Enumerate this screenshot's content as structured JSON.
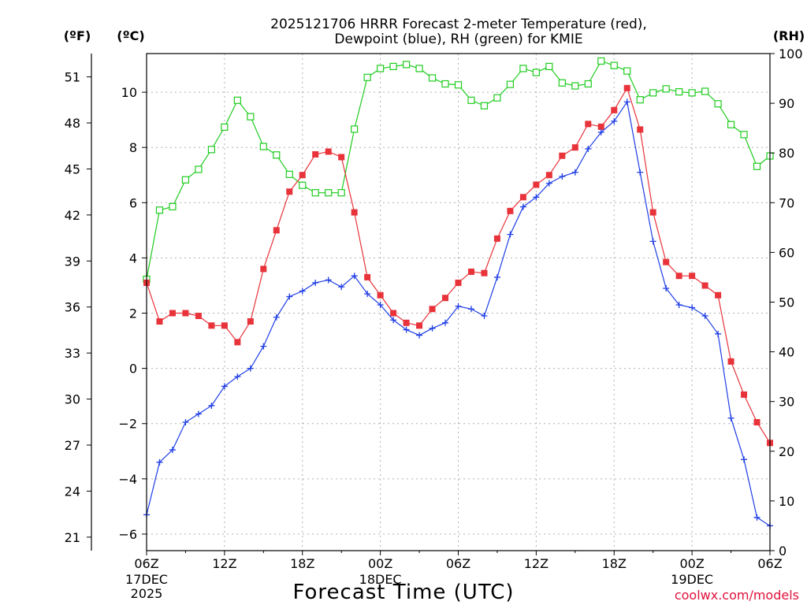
{
  "title_line1": "2025121706 HRRR Forecast 2-meter Temperature (red),",
  "title_line2": "Dewpoint (blue), RH (green) for KMIE",
  "xlabel": "Forecast Time (UTC)",
  "credit": "coolwx.com/models",
  "units": {
    "f": "(ºF)",
    "c": "(ºC)",
    "rh": "(RH)"
  },
  "colors": {
    "temperature": "#e8333a",
    "dewpoint": "#1e3de6",
    "rh": "#1fcc1f"
  },
  "chart_data": {
    "type": "line",
    "title": "2025121706 HRRR Forecast 2-meter Temperature (red), Dewpoint (blue), RH (green) for KMIE",
    "xlabel": "Forecast Time (UTC)",
    "x_start": "2025-12-17 06Z",
    "x_end": "2025-12-19 06Z",
    "xtick_labels": [
      "06Z",
      "12Z",
      "18Z",
      "00Z",
      "06Z",
      "12Z",
      "18Z",
      "00Z",
      "06Z"
    ],
    "date_labels": [
      "17DEC",
      "2025",
      "18DEC",
      "19DEC"
    ],
    "y_left_f_ticks": [
      21,
      24,
      27,
      30,
      33,
      36,
      39,
      42,
      45,
      48,
      51
    ],
    "y_left_c_ticks": [
      -6,
      -4,
      -2,
      0,
      2,
      4,
      6,
      8,
      10
    ],
    "y_right_rh_ticks": [
      0,
      10,
      20,
      30,
      40,
      50,
      60,
      70,
      80,
      90,
      100
    ],
    "ylim_c": [
      -6.6,
      11.4
    ],
    "ylim_rh": [
      0,
      100
    ],
    "grid": true,
    "series": [
      {
        "name": "Temperature",
        "units": "C",
        "values": [
          3.1,
          1.7,
          2.0,
          2.0,
          1.9,
          1.55,
          1.55,
          0.95,
          1.7,
          3.6,
          5.0,
          6.4,
          7.0,
          7.75,
          7.85,
          7.65,
          5.65,
          3.3,
          2.65,
          2.0,
          1.65,
          1.55,
          2.15,
          2.55,
          3.1,
          3.5,
          3.45,
          4.7,
          5.7,
          6.2,
          6.65,
          7.0,
          7.7,
          8.0,
          8.85,
          8.75,
          9.35,
          10.15,
          8.65,
          5.65,
          3.85,
          3.35,
          3.35,
          3.0,
          2.65,
          0.25,
          -0.95,
          -1.95,
          -2.7
        ]
      },
      {
        "name": "Dewpoint",
        "units": "C",
        "values": [
          -5.3,
          -3.4,
          -2.95,
          -1.95,
          -1.65,
          -1.35,
          -0.65,
          -0.3,
          0.0,
          0.8,
          1.85,
          2.6,
          2.8,
          3.1,
          3.2,
          2.95,
          3.35,
          2.7,
          2.3,
          1.75,
          1.4,
          1.2,
          1.45,
          1.65,
          2.25,
          2.15,
          1.9,
          3.3,
          4.85,
          5.85,
          6.2,
          6.7,
          6.95,
          7.1,
          7.95,
          8.55,
          8.95,
          9.65,
          7.1,
          4.6,
          2.9,
          2.3,
          2.2,
          1.9,
          1.25,
          -1.8,
          -3.3,
          -5.4,
          -5.7
        ]
      },
      {
        "name": "RH",
        "units": "%",
        "values": [
          54.6,
          68.5,
          69.2,
          74.6,
          76.7,
          80.7,
          85.2,
          90.6,
          87.3,
          81.3,
          79.6,
          75.7,
          73.5,
          72.0,
          72.0,
          72.0,
          84.8,
          95.2,
          97.0,
          97.4,
          97.8,
          97.0,
          95.1,
          93.9,
          93.7,
          90.6,
          89.5,
          91.1,
          93.8,
          97.0,
          96.2,
          97.4,
          94.1,
          93.5,
          93.9,
          98.5,
          97.6,
          96.5,
          90.7,
          92.1,
          92.9,
          92.3,
          92.1,
          92.4,
          89.9,
          85.7,
          83.7,
          77.3,
          79.4
        ]
      }
    ]
  }
}
